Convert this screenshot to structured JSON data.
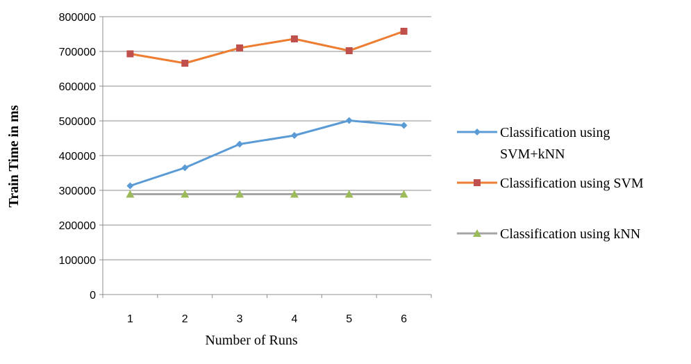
{
  "chart_data": {
    "type": "line",
    "title": "",
    "xlabel": "Number of Runs",
    "ylabel": "Train Time in ms",
    "categories": [
      "1",
      "2",
      "3",
      "4",
      "5",
      "6"
    ],
    "ylim": [
      0,
      800000
    ],
    "yticks": [
      "0",
      "100000",
      "200000",
      "300000",
      "400000",
      "500000",
      "600000",
      "700000",
      "800000"
    ],
    "grid": true,
    "legend_position": "right",
    "series": [
      {
        "name": "Classification using SVM+kNN",
        "legend_lines": [
          "Classification using",
          "SVM+kNN"
        ],
        "values": [
          313000,
          365000,
          433000,
          458000,
          501000,
          487000
        ],
        "color": "#5B9BD5",
        "marker": "diamond"
      },
      {
        "name": "Classification using SVM",
        "legend_lines": [
          "Classification using SVM"
        ],
        "values": [
          693000,
          666000,
          710000,
          736000,
          702000,
          758000
        ],
        "color": "#ED7D31",
        "marker_color": "#C0504D",
        "marker": "square"
      },
      {
        "name": "Classification using kNN",
        "legend_lines": [
          "Classification using kNN"
        ],
        "values": [
          289000,
          289000,
          289000,
          289000,
          289000,
          289000
        ],
        "color": "#A5A5A5",
        "marker_color": "#9BBB59",
        "marker": "triangle"
      }
    ]
  }
}
